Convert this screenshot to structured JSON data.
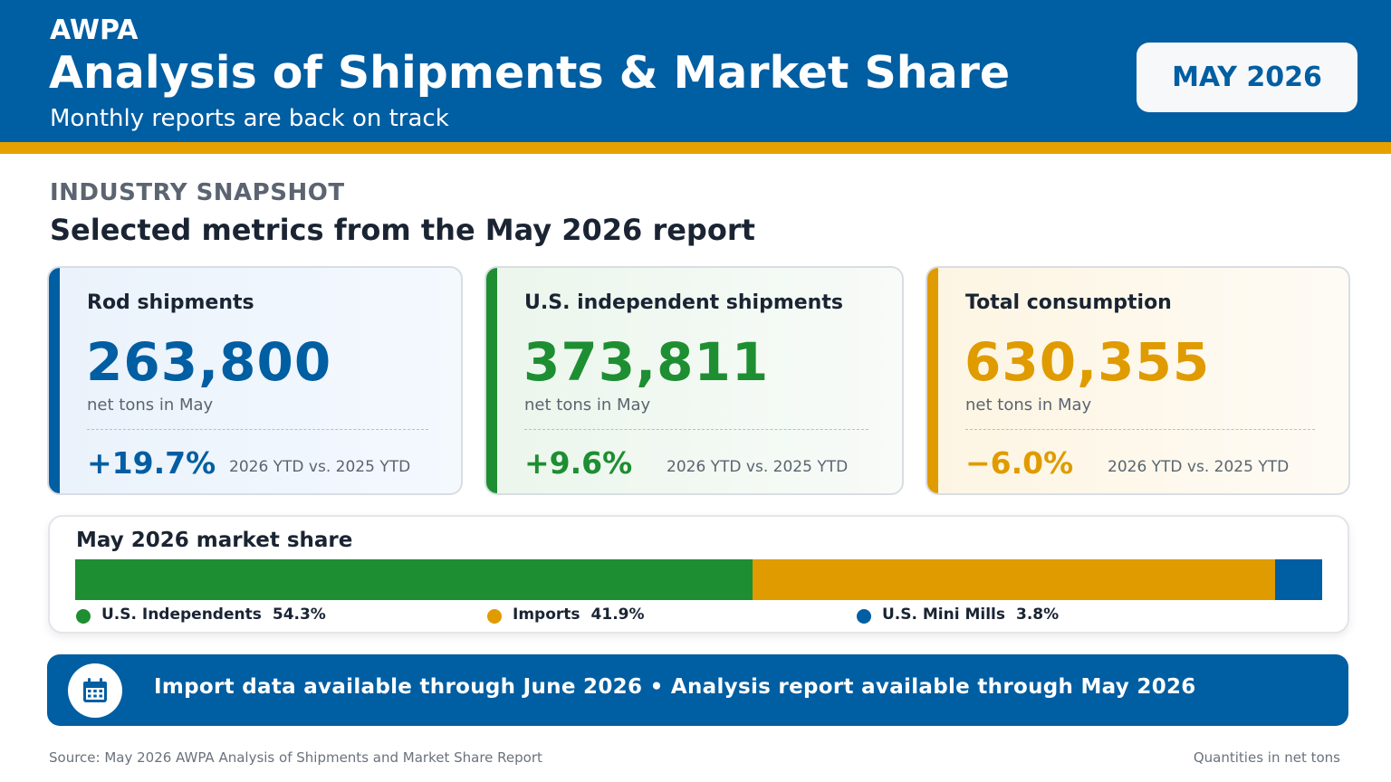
{
  "header": {
    "org": "AWPA",
    "title": "Analysis of Shipments & Market Share",
    "subtitle": "Monthly reports are back on track",
    "date_badge": "MAY 2026"
  },
  "colors": {
    "brand_blue": "#005ea2",
    "accent_gold": "#e6a100",
    "green": "#1e8e32",
    "gold": "#e09b00"
  },
  "snapshot": {
    "eyebrow": "INDUSTRY SNAPSHOT",
    "title": "Selected metrics from the May 2026 report"
  },
  "cards": [
    {
      "label": "Rod shipments",
      "value": "263,800",
      "unit": "net tons in May",
      "change": "+19.7%",
      "compare": "2026 YTD vs. 2025 YTD",
      "color": "#005ea2"
    },
    {
      "label": "U.S. independent shipments",
      "value": "373,811",
      "unit": "net tons in May",
      "change": "+9.6%",
      "compare": "2026 YTD vs. 2025 YTD",
      "color": "#1e8e32"
    },
    {
      "label": "Total consumption",
      "value": "630,355",
      "unit": "net tons in May",
      "change": "−6.0%",
      "compare": "2026 YTD vs. 2025 YTD",
      "color": "#e09b00"
    }
  ],
  "market_share": {
    "title": "May 2026 market share",
    "segments": [
      {
        "name": "U.S. Independents",
        "share": 54.3,
        "label": "54.3%",
        "color": "#1e8e32"
      },
      {
        "name": "Imports",
        "share": 41.9,
        "label": "41.9%",
        "color": "#e09b00"
      },
      {
        "name": "U.S. Mini Mills",
        "share": 3.8,
        "label": "3.8%",
        "color": "#005ea2"
      }
    ]
  },
  "banner": {
    "icon": "calendar-icon",
    "text": "Import data available through June 2026 • Analysis report available through May 2026"
  },
  "footer": {
    "source": "Source: May 2026 AWPA Analysis of Shipments and Market Share Report",
    "units_note": "Quantities in net tons"
  }
}
